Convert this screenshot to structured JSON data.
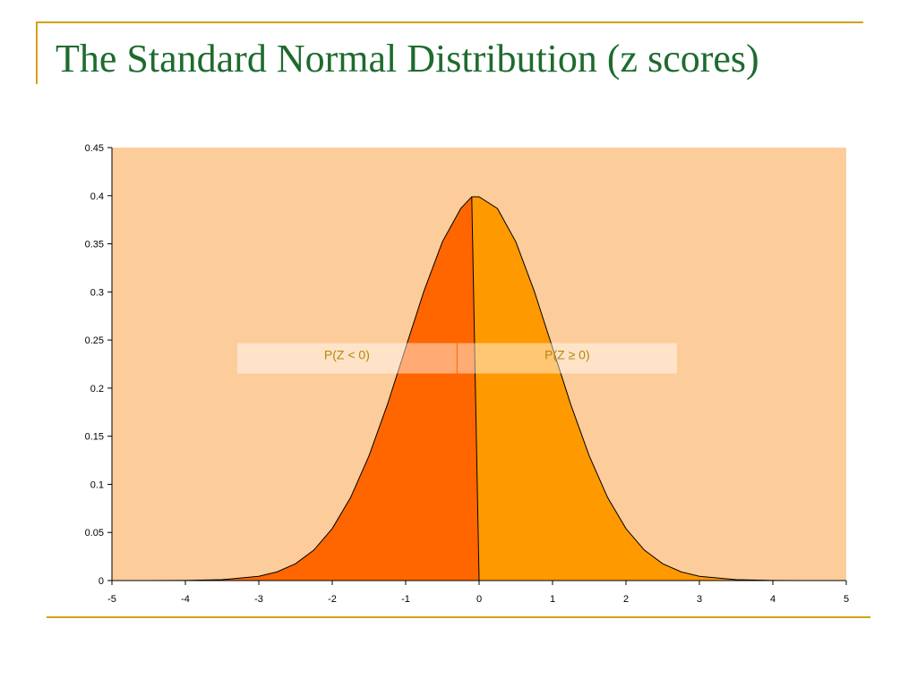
{
  "slide": {
    "title": "The Standard Normal Distribution (z scores)"
  },
  "colors": {
    "title": "#1e6b2e",
    "rule": "#d4a017",
    "plot_background": "#fdcc9b",
    "left_region": "#ff6600",
    "right_region": "#ff9900",
    "curve": "#000000",
    "annotation_text": "#b8860b"
  },
  "chart_data": {
    "type": "area",
    "title": "",
    "xlabel": "",
    "ylabel": "",
    "xlim": [
      -5,
      5
    ],
    "ylim": [
      0,
      0.45
    ],
    "x_ticks": [
      "-5",
      "-4",
      "-3",
      "-2",
      "-1",
      "0",
      "1",
      "2",
      "3",
      "4",
      "5"
    ],
    "y_ticks": [
      "0",
      "0.05",
      "0.1",
      "0.15",
      "0.2",
      "0.25",
      "0.3",
      "0.35",
      "0.4",
      "0.45"
    ],
    "grid": false,
    "series": [
      {
        "x": [
          -5,
          -4.5,
          -4,
          -3.5,
          -3,
          -2.75,
          -2.5,
          -2.25,
          -2,
          -1.75,
          -1.5,
          -1.25,
          -1,
          -0.75,
          -0.5,
          -0.25,
          0,
          0.25,
          0.5,
          0.75,
          1,
          1.25,
          1.5,
          1.75,
          2,
          2.25,
          2.5,
          2.75,
          3,
          3.5,
          4,
          4.5,
          5
        ],
        "y": [
          0.0,
          0.0,
          0.0001,
          0.0009,
          0.0044,
          0.0091,
          0.0175,
          0.0317,
          0.054,
          0.0863,
          0.1295,
          0.1826,
          0.242,
          0.3011,
          0.3521,
          0.3867,
          0.3989,
          0.3867,
          0.3521,
          0.3011,
          0.242,
          0.1826,
          0.1295,
          0.0863,
          0.054,
          0.0317,
          0.0175,
          0.0091,
          0.0044,
          0.0009,
          0.0001,
          0.0,
          0.0
        ]
      }
    ],
    "annotations": [
      {
        "text": "P(Z < 0)",
        "x": -1.8,
        "y": 0.231
      },
      {
        "text": "P(Z ≥ 0)",
        "x": 1.2,
        "y": 0.231
      }
    ]
  }
}
